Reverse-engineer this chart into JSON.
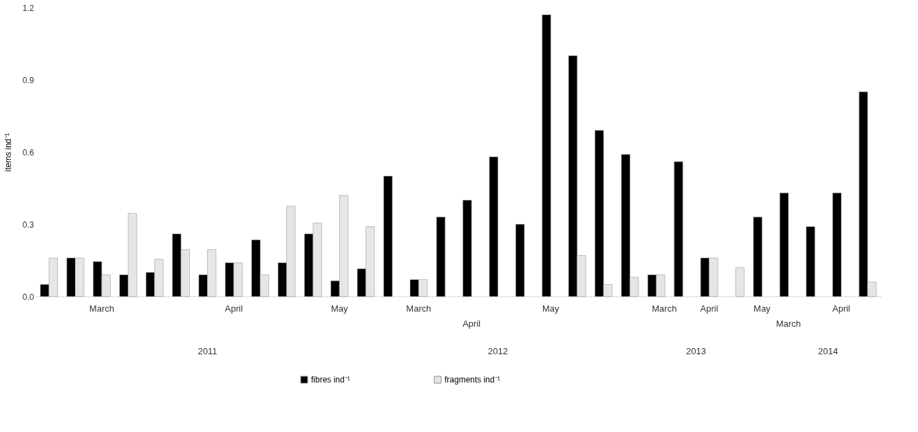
{
  "chart_data": {
    "type": "bar",
    "categories": [
      null,
      null,
      null,
      null,
      null,
      null,
      null,
      null,
      null,
      null,
      null,
      null,
      null,
      null,
      null,
      null,
      null,
      null,
      null,
      null,
      null,
      null,
      null,
      null,
      null,
      null,
      null,
      null,
      null,
      null,
      null,
      null
    ],
    "series": [
      {
        "name": "fibres ind⁻¹",
        "color": "#000000",
        "values": [
          0.05,
          0.16,
          0.145,
          0.09,
          0.1,
          0.26,
          0.09,
          0.14,
          0.235,
          0.14,
          0.26,
          0.065,
          0.115,
          0.5,
          0.07,
          0.33,
          0.4,
          0.58,
          0.3,
          1.17,
          1.0,
          0.69,
          0.59,
          0.09,
          0.56,
          0.16,
          0,
          0.33,
          0.43,
          0.29,
          0.43,
          0.85
        ]
      },
      {
        "name": "fragments ind⁻¹",
        "color": "#e6e6e6",
        "values": [
          0.16,
          0.16,
          0.09,
          0.345,
          0.155,
          0.195,
          0.195,
          0.14,
          0.09,
          0.375,
          0.305,
          0.42,
          0.29,
          0,
          0.07,
          0,
          0,
          0,
          0,
          0,
          0.17,
          0.05,
          0.08,
          0.09,
          0,
          0.16,
          0.12,
          0,
          0,
          0,
          0,
          0.06
        ]
      }
    ],
    "ylabel": "items ind⁻¹",
    "ylim": [
      0,
      1.2
    ],
    "yticks": [
      {
        "value": 0,
        "label": "0.0"
      },
      0.3,
      0.6,
      0.9,
      1.2
    ],
    "annotations": [
      "March",
      "April",
      "May",
      "March",
      "April",
      "May",
      "March",
      "April",
      "May",
      "March",
      "April",
      "2011",
      "2012",
      "2013",
      "2014"
    ],
    "tick_labels": "y",
    "grid": false,
    "legend": "bottom"
  }
}
